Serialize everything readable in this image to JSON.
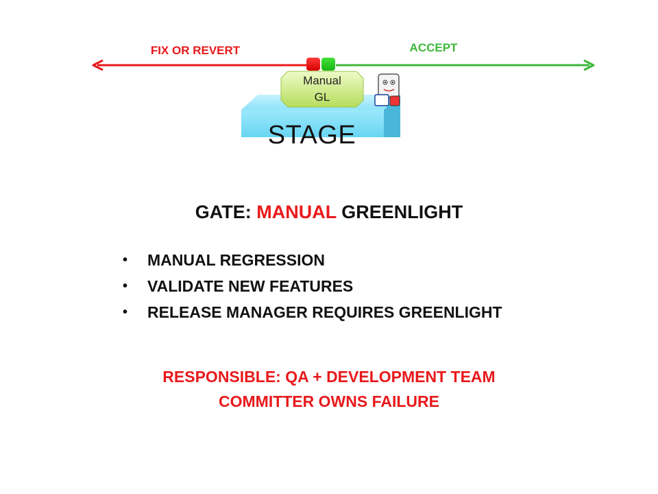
{
  "gate_arrow": {
    "left_label": "FIX OR REVERT",
    "right_label": "ACCEPT",
    "left_color": "#e8191b",
    "right_color": "#3db83a"
  },
  "stage": {
    "label": "STAGE",
    "color": "#4fcdf0",
    "gate_line1": "Manual",
    "gate_line2": "GL",
    "gate_color": "#c8ea7a",
    "mascot": "paper-mascot-icon"
  },
  "title": {
    "prefix": "GATE: ",
    "accent": "MANUAL",
    "suffix": " GREENLIGHT"
  },
  "bullets": [
    "MANUAL REGRESSION",
    "VALIDATE NEW FEATURES",
    "RELEASE MANAGER REQUIRES GREENLIGHT"
  ],
  "responsibility": {
    "line1": "RESPONSIBLE: QA + DEVELOPMENT TEAM",
    "line2": "COMMITTER OWNS FAILURE"
  }
}
